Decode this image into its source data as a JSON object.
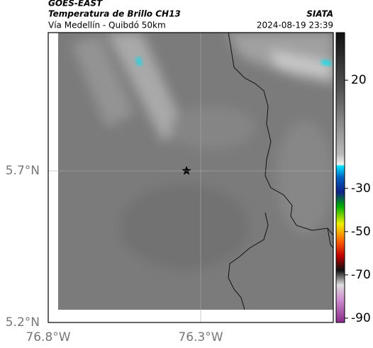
{
  "header": {
    "title": "GOES-EAST",
    "subtitle": "Temperatura de Brillo CH13",
    "region": "Vía Medellín - Quibdó 50km",
    "source": "SIATA",
    "timestamp": "2024-08-19 23:39"
  },
  "map": {
    "lonlim": [
      -76.8,
      -75.865
    ],
    "latlim": [
      5.2,
      6.156
    ],
    "lonticks": [
      {
        "value": -76.8,
        "label": "76.8°W"
      },
      {
        "value": -76.3,
        "label": "76.3°W"
      }
    ],
    "latticks": [
      {
        "value": 5.2,
        "label": "5.2°N"
      },
      {
        "value": 5.7,
        "label": "5.7°N"
      }
    ],
    "grid": true
  },
  "colorbar": {
    "lim": [
      -92,
      42
    ],
    "ticks": [
      20,
      -30,
      -50,
      -70,
      -90
    ]
  }
}
